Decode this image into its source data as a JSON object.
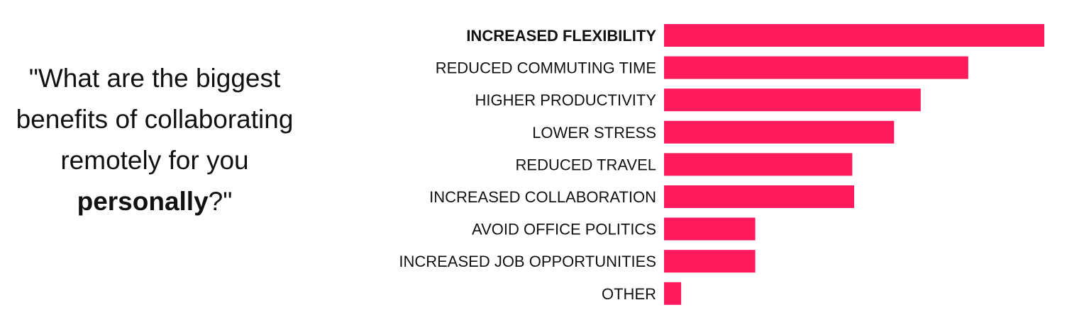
{
  "question": {
    "open_quote": "\"",
    "text": "What are the biggest benefits of collaborating remotely for you",
    "emphasis": "personally",
    "tail": "?\""
  },
  "chart_data": {
    "type": "bar",
    "orientation": "horizontal",
    "categories": [
      "INCREASED FLEXIBILITY",
      "REDUCED COMMUTING TIME",
      "HIGHER PRODUCTIVITY",
      "LOWER STRESS",
      "REDUCED TRAVEL",
      "INCREASED COLLABORATION",
      "AVOID OFFICE POLITICS",
      "INCREASED JOB OPPORTUNITIES",
      "OTHER"
    ],
    "values": [
      100,
      80,
      67.5,
      60.5,
      49.5,
      50,
      24,
      24,
      4.5
    ],
    "highlighted_category": "INCREASED FLEXIBILITY",
    "bar_color": "#ff1a5e",
    "xlim": [
      0,
      100
    ],
    "grid": false,
    "legend": "none"
  }
}
